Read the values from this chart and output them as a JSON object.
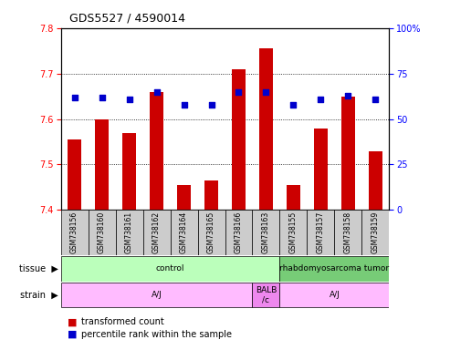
{
  "title": "GDS5527 / 4590014",
  "samples": [
    "GSM738156",
    "GSM738160",
    "GSM738161",
    "GSM738162",
    "GSM738164",
    "GSM738165",
    "GSM738166",
    "GSM738163",
    "GSM738155",
    "GSM738157",
    "GSM738158",
    "GSM738159"
  ],
  "bar_values": [
    7.555,
    7.6,
    7.57,
    7.66,
    7.455,
    7.465,
    7.71,
    7.755,
    7.455,
    7.58,
    7.65,
    7.53
  ],
  "dot_values": [
    62,
    62,
    61,
    65,
    58,
    58,
    65,
    65,
    58,
    61,
    63,
    61
  ],
  "ylim_left": [
    7.4,
    7.8
  ],
  "ylim_right": [
    0,
    100
  ],
  "yticks_left": [
    7.4,
    7.5,
    7.6,
    7.7,
    7.8
  ],
  "yticks_right": [
    0,
    25,
    50,
    75,
    100
  ],
  "ytick_right_labels": [
    "0",
    "25",
    "50",
    "75",
    "100%"
  ],
  "bar_color": "#cc0000",
  "dot_color": "#0000cc",
  "bar_base": 7.4,
  "tissue_regions": [
    {
      "text": "control",
      "start": 0,
      "end": 7,
      "color": "#bbffbb"
    },
    {
      "text": "rhabdomyosarcoma tumor",
      "start": 8,
      "end": 11,
      "color": "#77cc77"
    }
  ],
  "strain_regions": [
    {
      "text": "A/J",
      "start": 0,
      "end": 6,
      "color": "#ffbbff"
    },
    {
      "text": "BALB\n/c",
      "start": 7,
      "end": 7,
      "color": "#ee88ee"
    },
    {
      "text": "A/J",
      "start": 8,
      "end": 11,
      "color": "#ffbbff"
    }
  ],
  "legend_items": [
    {
      "color": "#cc0000",
      "label": "transformed count"
    },
    {
      "color": "#0000cc",
      "label": "percentile rank within the sample"
    }
  ],
  "sample_box_color": "#cccccc",
  "title_fontsize": 9,
  "tick_fontsize": 7,
  "label_fontsize": 7,
  "legend_fontsize": 7
}
